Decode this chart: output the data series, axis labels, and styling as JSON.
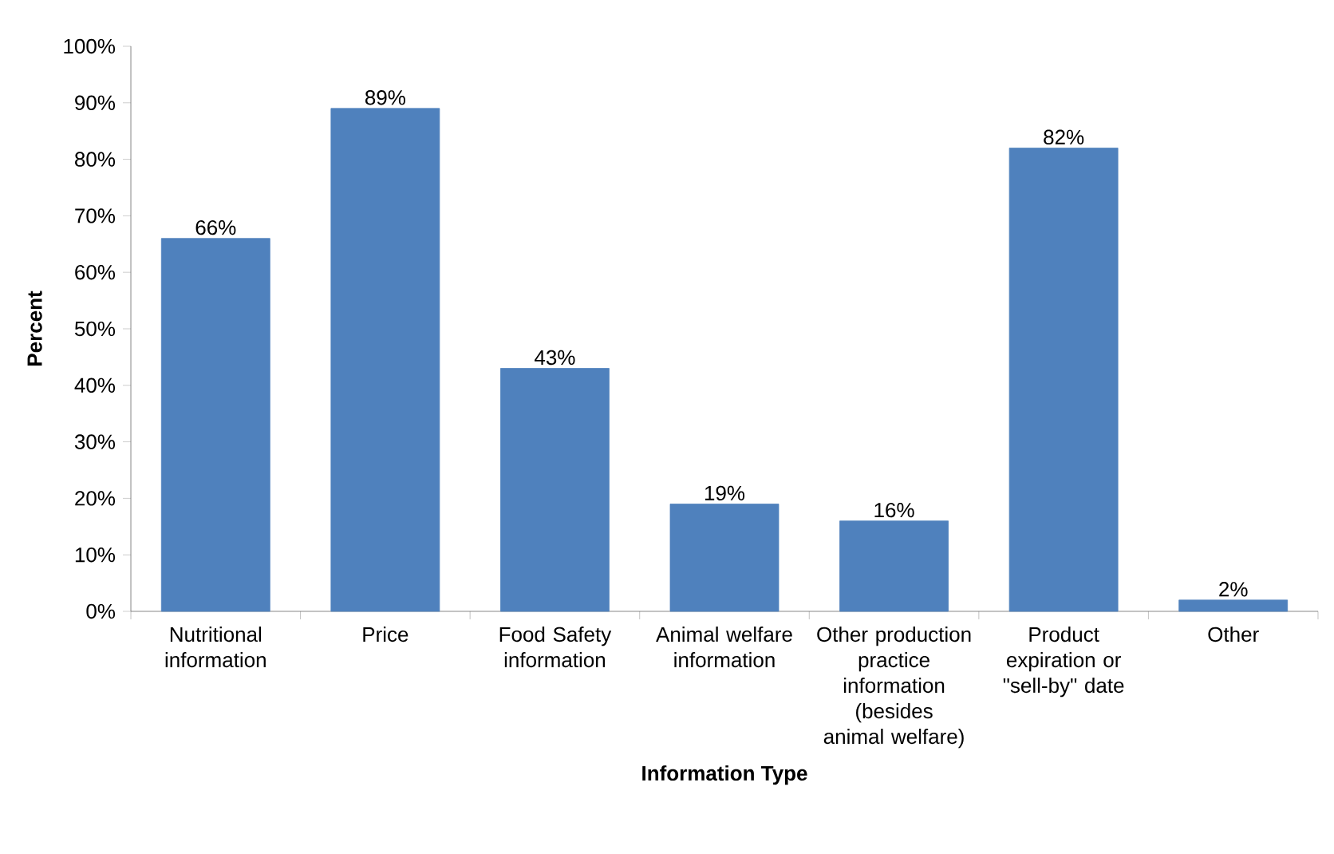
{
  "chart_data": {
    "type": "bar",
    "xlabel": "Information Type",
    "ylabel": "Percent",
    "categories": [
      "Nutritional information",
      "Price",
      "Food Safety information",
      "Animal welfare information",
      "Other production practice information (besides animal welfare)",
      "Product expiration or \"sell-by\" date",
      "Other"
    ],
    "values": [
      66,
      89,
      43,
      19,
      16,
      82,
      2
    ],
    "value_labels": [
      "66%",
      "89%",
      "43%",
      "19%",
      "16%",
      "82%",
      "2%"
    ],
    "color": "#4f81bd",
    "ylim": [
      0,
      100
    ],
    "yticks": [
      {
        "value": 0,
        "label": "0%"
      },
      {
        "value": 10,
        "label": "10%"
      },
      {
        "value": 20,
        "label": "20%"
      },
      {
        "value": 30,
        "label": "30%"
      },
      {
        "value": 40,
        "label": "40%"
      },
      {
        "value": 50,
        "label": "50%"
      },
      {
        "value": 60,
        "label": "60%"
      },
      {
        "value": 70,
        "label": "70%"
      },
      {
        "value": 80,
        "label": "80%"
      },
      {
        "value": 90,
        "label": "90%"
      },
      {
        "value": 100,
        "label": "100%"
      }
    ]
  }
}
